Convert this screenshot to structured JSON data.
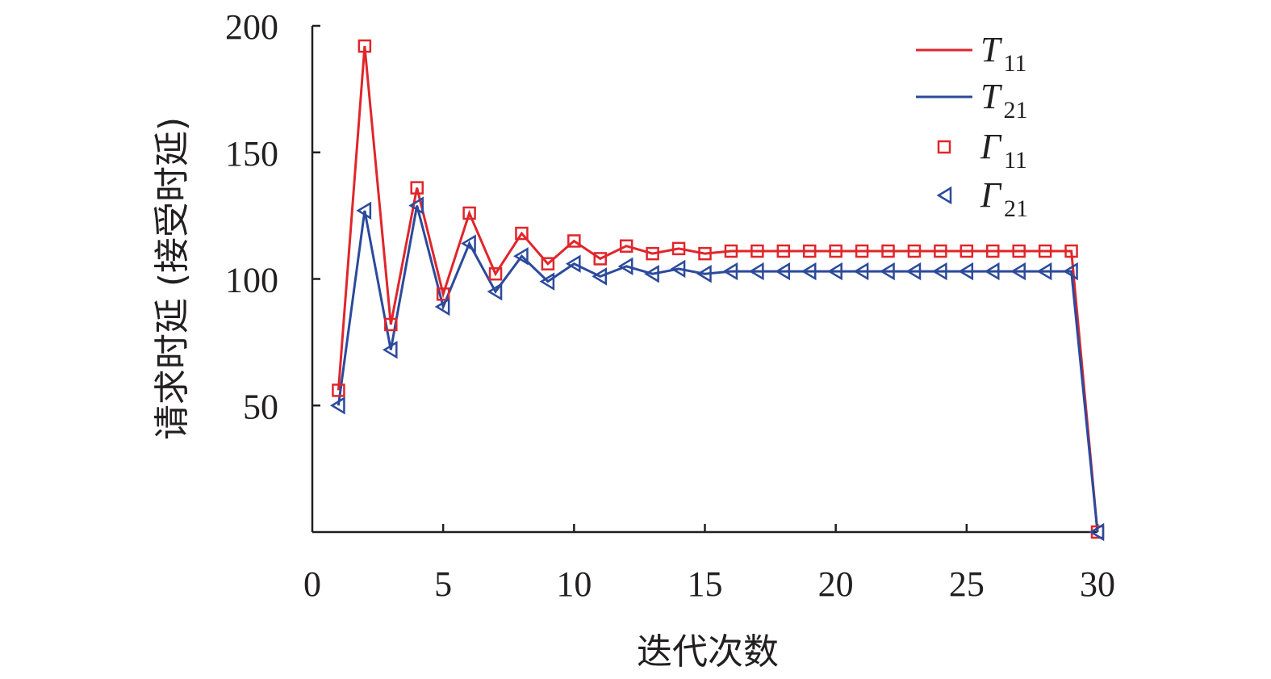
{
  "chart_data": {
    "type": "line",
    "title": "",
    "xlabel": "迭代次数",
    "ylabel": "请求时延 (接受时延)",
    "xlim": [
      0,
      30
    ],
    "ylim": [
      0,
      200
    ],
    "x_ticks": [
      "0",
      "5",
      "10",
      "15",
      "20",
      "25",
      "30"
    ],
    "y_ticks": [
      "50",
      "100",
      "150",
      "200"
    ],
    "grid": false,
    "legend_position": "top-right",
    "x": [
      1,
      2,
      3,
      4,
      5,
      6,
      7,
      8,
      9,
      10,
      11,
      12,
      13,
      14,
      15,
      16,
      17,
      18,
      19,
      20,
      21,
      22,
      23,
      24,
      25,
      26,
      27,
      28,
      29,
      30
    ],
    "series": [
      {
        "name": "T11",
        "label_main": "T",
        "label_sub": "11",
        "style": "line",
        "color": "#e0262b",
        "values": [
          56,
          192,
          82,
          136,
          94,
          126,
          102,
          118,
          106,
          115,
          108,
          113,
          110,
          112,
          110,
          111,
          111,
          111,
          111,
          111,
          111,
          111,
          111,
          111,
          111,
          111,
          111,
          111,
          111,
          0
        ]
      },
      {
        "name": "T21",
        "label_main": "T",
        "label_sub": "21",
        "style": "line",
        "color": "#2c4a9c",
        "values": [
          50,
          127,
          72,
          129,
          89,
          114,
          95,
          109,
          99,
          106,
          101,
          105,
          102,
          104,
          102,
          103,
          103,
          103,
          103,
          103,
          103,
          103,
          103,
          103,
          103,
          103,
          103,
          103,
          103,
          0
        ]
      },
      {
        "name": "Γ11",
        "label_main": "Γ",
        "label_sub": "11",
        "style": "marker",
        "marker": "square",
        "color": "#e0262b",
        "values": [
          56,
          192,
          82,
          136,
          94,
          126,
          102,
          118,
          106,
          115,
          108,
          113,
          110,
          112,
          110,
          111,
          111,
          111,
          111,
          111,
          111,
          111,
          111,
          111,
          111,
          111,
          111,
          111,
          111,
          0
        ]
      },
      {
        "name": "Γ21",
        "label_main": "Γ",
        "label_sub": "21",
        "style": "marker",
        "marker": "triangle-left",
        "color": "#2c4a9c",
        "values": [
          50,
          127,
          72,
          129,
          89,
          114,
          95,
          109,
          99,
          106,
          101,
          105,
          102,
          104,
          102,
          103,
          103,
          103,
          103,
          103,
          103,
          103,
          103,
          103,
          103,
          103,
          103,
          103,
          103,
          0
        ]
      }
    ]
  }
}
